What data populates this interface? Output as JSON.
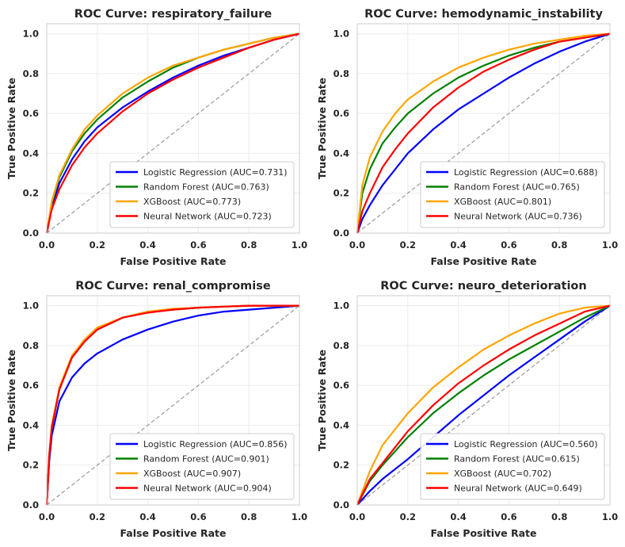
{
  "chart_data": [
    {
      "type": "line",
      "title": "ROC Curve: respiratory_failure",
      "xlabel": "False Positive Rate",
      "ylabel": "True Positive Rate",
      "xlim": [
        0,
        1.0
      ],
      "ylim": [
        0,
        1.05
      ],
      "xticks": [
        "0.0",
        "0.2",
        "0.4",
        "0.6",
        "0.8",
        "1.0"
      ],
      "yticks": [
        "0.0",
        "0.2",
        "0.4",
        "0.6",
        "0.8",
        "1.0"
      ],
      "grid": true,
      "legend_position": "lower-right",
      "series": [
        {
          "name": "Logistic Regression (AUC=0.731)",
          "color": "#0000ff",
          "x": [
            0,
            0.02,
            0.05,
            0.1,
            0.15,
            0.2,
            0.3,
            0.4,
            0.5,
            0.6,
            0.7,
            0.8,
            0.9,
            1.0
          ],
          "y": [
            0,
            0.13,
            0.25,
            0.37,
            0.46,
            0.53,
            0.63,
            0.71,
            0.78,
            0.84,
            0.89,
            0.93,
            0.97,
            1.0
          ]
        },
        {
          "name": "Random Forest (AUC=0.763)",
          "color": "#008000",
          "x": [
            0,
            0.02,
            0.05,
            0.1,
            0.15,
            0.2,
            0.3,
            0.4,
            0.5,
            0.6,
            0.7,
            0.8,
            0.9,
            1.0
          ],
          "y": [
            0,
            0.15,
            0.28,
            0.41,
            0.5,
            0.57,
            0.68,
            0.76,
            0.83,
            0.88,
            0.92,
            0.95,
            0.98,
            1.0
          ]
        },
        {
          "name": "XGBoost (AUC=0.773)",
          "color": "#ffa500",
          "x": [
            0,
            0.02,
            0.05,
            0.1,
            0.15,
            0.2,
            0.3,
            0.4,
            0.5,
            0.6,
            0.7,
            0.8,
            0.9,
            1.0
          ],
          "y": [
            0,
            0.16,
            0.29,
            0.42,
            0.52,
            0.59,
            0.7,
            0.78,
            0.84,
            0.88,
            0.92,
            0.95,
            0.98,
            1.0
          ]
        },
        {
          "name": "Neural Network (AUC=0.723)",
          "color": "#ff0000",
          "x": [
            0,
            0.02,
            0.05,
            0.1,
            0.15,
            0.2,
            0.3,
            0.4,
            0.5,
            0.6,
            0.7,
            0.8,
            0.9,
            1.0
          ],
          "y": [
            0,
            0.12,
            0.22,
            0.34,
            0.43,
            0.5,
            0.61,
            0.7,
            0.77,
            0.83,
            0.88,
            0.93,
            0.97,
            1.0
          ]
        }
      ]
    },
    {
      "type": "line",
      "title": "ROC Curve: hemodynamic_instability",
      "xlabel": "False Positive Rate",
      "ylabel": "True Positive Rate",
      "xlim": [
        0,
        1.0
      ],
      "ylim": [
        0,
        1.05
      ],
      "xticks": [
        "0.0",
        "0.2",
        "0.4",
        "0.6",
        "0.8",
        "1.0"
      ],
      "yticks": [
        "0.0",
        "0.2",
        "0.4",
        "0.6",
        "0.8",
        "1.0"
      ],
      "grid": true,
      "legend_position": "lower-right",
      "series": [
        {
          "name": "Logistic Regression (AUC=0.688)",
          "color": "#0000ff",
          "x": [
            0,
            0.02,
            0.05,
            0.1,
            0.15,
            0.2,
            0.3,
            0.4,
            0.5,
            0.6,
            0.7,
            0.8,
            0.9,
            1.0
          ],
          "y": [
            0,
            0.07,
            0.14,
            0.24,
            0.32,
            0.4,
            0.52,
            0.62,
            0.7,
            0.78,
            0.85,
            0.91,
            0.96,
            1.0
          ]
        },
        {
          "name": "Random Forest (AUC=0.765)",
          "color": "#008000",
          "x": [
            0,
            0.02,
            0.05,
            0.1,
            0.15,
            0.2,
            0.3,
            0.4,
            0.5,
            0.6,
            0.7,
            0.8,
            0.9,
            1.0
          ],
          "y": [
            0,
            0.2,
            0.32,
            0.45,
            0.53,
            0.6,
            0.7,
            0.78,
            0.84,
            0.89,
            0.93,
            0.96,
            0.98,
            1.0
          ]
        },
        {
          "name": "XGBoost (AUC=0.801)",
          "color": "#ffa500",
          "x": [
            0,
            0.02,
            0.05,
            0.1,
            0.15,
            0.2,
            0.3,
            0.4,
            0.5,
            0.6,
            0.7,
            0.8,
            0.9,
            1.0
          ],
          "y": [
            0,
            0.24,
            0.38,
            0.51,
            0.6,
            0.67,
            0.76,
            0.83,
            0.88,
            0.92,
            0.95,
            0.97,
            0.99,
            1.0
          ]
        },
        {
          "name": "Neural Network (AUC=0.736)",
          "color": "#ff0000",
          "x": [
            0,
            0.02,
            0.05,
            0.1,
            0.15,
            0.2,
            0.3,
            0.4,
            0.5,
            0.6,
            0.7,
            0.8,
            0.9,
            1.0
          ],
          "y": [
            0,
            0.11,
            0.2,
            0.33,
            0.42,
            0.5,
            0.63,
            0.73,
            0.81,
            0.87,
            0.92,
            0.96,
            0.98,
            1.0
          ]
        }
      ]
    },
    {
      "type": "line",
      "title": "ROC Curve: renal_compromise",
      "xlabel": "False Positive Rate",
      "ylabel": "True Positive Rate",
      "xlim": [
        0,
        1.0
      ],
      "ylim": [
        0,
        1.05
      ],
      "xticks": [
        "0.0",
        "0.2",
        "0.4",
        "0.6",
        "0.8",
        "1.0"
      ],
      "yticks": [
        "0.0",
        "0.2",
        "0.4",
        "0.6",
        "0.8",
        "1.0"
      ],
      "grid": true,
      "legend_position": "lower-right",
      "series": [
        {
          "name": "Logistic Regression (AUC=0.856)",
          "color": "#0000ff",
          "x": [
            0,
            0.01,
            0.02,
            0.05,
            0.1,
            0.15,
            0.2,
            0.3,
            0.4,
            0.5,
            0.6,
            0.7,
            0.8,
            0.9,
            1.0
          ],
          "y": [
            0,
            0.22,
            0.35,
            0.52,
            0.64,
            0.71,
            0.76,
            0.83,
            0.88,
            0.92,
            0.95,
            0.97,
            0.98,
            0.99,
            1.0
          ]
        },
        {
          "name": "Random Forest (AUC=0.901)",
          "color": "#008000",
          "x": [
            0,
            0.01,
            0.02,
            0.05,
            0.1,
            0.15,
            0.2,
            0.3,
            0.4,
            0.5,
            0.6,
            0.7,
            0.8,
            0.9,
            1.0
          ],
          "y": [
            0,
            0.25,
            0.39,
            0.58,
            0.74,
            0.82,
            0.88,
            0.94,
            0.97,
            0.98,
            0.99,
            0.995,
            1.0,
            1.0,
            1.0
          ]
        },
        {
          "name": "XGBoost (AUC=0.907)",
          "color": "#ffa500",
          "x": [
            0,
            0.01,
            0.02,
            0.05,
            0.1,
            0.15,
            0.2,
            0.3,
            0.4,
            0.5,
            0.6,
            0.7,
            0.8,
            0.9,
            1.0
          ],
          "y": [
            0,
            0.26,
            0.4,
            0.59,
            0.75,
            0.83,
            0.89,
            0.94,
            0.97,
            0.985,
            0.99,
            0.995,
            1.0,
            1.0,
            1.0
          ]
        },
        {
          "name": "Neural Network (AUC=0.904)",
          "color": "#ff0000",
          "x": [
            0,
            0.01,
            0.02,
            0.05,
            0.1,
            0.15,
            0.2,
            0.3,
            0.4,
            0.5,
            0.6,
            0.7,
            0.8,
            0.9,
            1.0
          ],
          "y": [
            0,
            0.25,
            0.39,
            0.58,
            0.74,
            0.82,
            0.88,
            0.94,
            0.965,
            0.98,
            0.99,
            0.995,
            1.0,
            1.0,
            1.0
          ]
        }
      ]
    },
    {
      "type": "line",
      "title": "ROC Curve: neuro_deterioration",
      "xlabel": "False Positive Rate",
      "ylabel": "True Positive Rate",
      "xlim": [
        0,
        1.0
      ],
      "ylim": [
        0,
        1.05
      ],
      "xticks": [
        "0.0",
        "0.2",
        "0.4",
        "0.6",
        "0.8",
        "1.0"
      ],
      "yticks": [
        "0.0",
        "0.2",
        "0.4",
        "0.6",
        "0.8",
        "1.0"
      ],
      "grid": true,
      "legend_position": "lower-right",
      "series": [
        {
          "name": "Logistic Regression (AUC=0.560)",
          "color": "#0000ff",
          "x": [
            0,
            0.05,
            0.1,
            0.2,
            0.3,
            0.4,
            0.5,
            0.6,
            0.7,
            0.8,
            0.9,
            1.0
          ],
          "y": [
            0,
            0.07,
            0.13,
            0.23,
            0.34,
            0.45,
            0.55,
            0.65,
            0.74,
            0.83,
            0.92,
            1.0
          ]
        },
        {
          "name": "Random Forest (AUC=0.615)",
          "color": "#008000",
          "x": [
            0,
            0.05,
            0.1,
            0.2,
            0.3,
            0.4,
            0.5,
            0.6,
            0.7,
            0.8,
            0.9,
            1.0
          ],
          "y": [
            0,
            0.12,
            0.2,
            0.34,
            0.46,
            0.56,
            0.65,
            0.73,
            0.8,
            0.87,
            0.94,
            1.0
          ]
        },
        {
          "name": "XGBoost (AUC=0.702)",
          "color": "#ffa500",
          "x": [
            0,
            0.05,
            0.1,
            0.2,
            0.3,
            0.4,
            0.5,
            0.6,
            0.7,
            0.8,
            0.9,
            1.0
          ],
          "y": [
            0,
            0.17,
            0.3,
            0.46,
            0.59,
            0.69,
            0.78,
            0.85,
            0.91,
            0.96,
            0.99,
            1.0
          ]
        },
        {
          "name": "Neural Network (AUC=0.649)",
          "color": "#ff0000",
          "x": [
            0,
            0.05,
            0.1,
            0.2,
            0.3,
            0.4,
            0.5,
            0.6,
            0.7,
            0.8,
            0.9,
            1.0
          ],
          "y": [
            0,
            0.13,
            0.21,
            0.37,
            0.5,
            0.61,
            0.7,
            0.78,
            0.85,
            0.91,
            0.97,
            1.0
          ]
        }
      ]
    }
  ]
}
